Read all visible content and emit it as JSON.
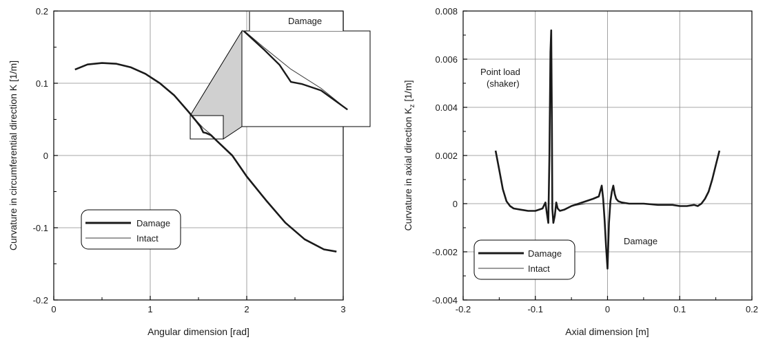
{
  "chart_data": [
    {
      "type": "line",
      "xlabel": "Angular dimension [rad]",
      "ylabel": "Curvature in circumferential direction K [1/m]",
      "xlim": [
        0,
        3
      ],
      "ylim": [
        -0.2,
        0.2
      ],
      "xticks": [
        "0",
        "1",
        "2",
        "3"
      ],
      "yticks": [
        "-0.2",
        "-0.1",
        "0",
        "0.1",
        "0.2"
      ],
      "grid": true,
      "legend_position": "bottom-left",
      "series": [
        {
          "name": "Damage",
          "x": [
            0.22,
            0.35,
            0.5,
            0.65,
            0.8,
            0.95,
            1.1,
            1.25,
            1.4,
            1.48,
            1.52,
            1.55,
            1.58,
            1.63,
            1.7,
            1.85,
            2.0,
            2.2,
            2.4,
            2.6,
            2.8,
            2.93
          ],
          "y": [
            0.119,
            0.126,
            0.128,
            0.127,
            0.122,
            0.113,
            0.1,
            0.083,
            0.06,
            0.047,
            0.04,
            0.032,
            0.031,
            0.028,
            0.019,
            0.0,
            -0.029,
            -0.062,
            -0.093,
            -0.116,
            -0.13,
            -0.133
          ]
        },
        {
          "name": "Intact",
          "x": [
            0.22,
            0.35,
            0.5,
            0.65,
            0.8,
            0.95,
            1.1,
            1.25,
            1.4,
            1.48,
            1.55,
            1.63,
            1.7,
            1.85,
            2.0,
            2.2,
            2.4,
            2.6,
            2.8,
            2.93
          ],
          "y": [
            0.119,
            0.126,
            0.128,
            0.127,
            0.122,
            0.113,
            0.1,
            0.083,
            0.06,
            0.048,
            0.038,
            0.029,
            0.019,
            0.0,
            -0.029,
            -0.062,
            -0.093,
            -0.116,
            -0.13,
            -0.133
          ]
        }
      ],
      "annotations": [
        "Damage"
      ]
    },
    {
      "type": "line",
      "xlabel": "Axial dimension [m]",
      "ylabel": "Curvature in axial direction K",
      "ylabel_sub": "z",
      "ylabel_unit": " [1/m]",
      "xlim": [
        -0.2,
        0.2
      ],
      "ylim": [
        -0.004,
        0.008
      ],
      "xticks": [
        "-0.2",
        "-0.1",
        "0",
        "0.1",
        "0.2"
      ],
      "yticks": [
        "-0.004",
        "-0.002",
        "0",
        "0.002",
        "0.004",
        "0.006",
        "0.008"
      ],
      "grid": true,
      "legend_position": "bottom-left",
      "series": [
        {
          "name": "Damage",
          "x": [
            -0.155,
            -0.15,
            -0.145,
            -0.14,
            -0.135,
            -0.13,
            -0.12,
            -0.11,
            -0.1,
            -0.09,
            -0.086,
            -0.084,
            -0.082,
            -0.0805,
            -0.079,
            -0.078,
            -0.077,
            -0.0765,
            -0.075,
            -0.073,
            -0.071,
            -0.069,
            -0.066,
            -0.06,
            -0.05,
            -0.04,
            -0.03,
            -0.02,
            -0.012,
            -0.008,
            -0.006,
            -0.004,
            -0.002,
            0.0,
            0.002,
            0.004,
            0.006,
            0.008,
            0.01,
            0.012,
            0.015,
            0.02,
            0.03,
            0.05,
            0.07,
            0.09,
            0.1,
            0.11,
            0.12,
            0.125,
            0.13,
            0.135,
            0.14,
            0.145,
            0.15,
            0.155
          ],
          "y": [
            0.0022,
            0.0014,
            0.0006,
            0.0001,
            -0.0001,
            -0.0002,
            -0.00025,
            -0.0003,
            -0.0003,
            -0.0002,
            5e-05,
            -0.0004,
            -0.0008,
            0.002,
            0.0063,
            0.0072,
            0.0034,
            -0.0002,
            -0.0008,
            -0.0005,
            5e-05,
            -0.0002,
            -0.0003,
            -0.00025,
            -0.0001,
            0.0,
            0.0001,
            0.0002,
            0.0003,
            0.00075,
            0.0002,
            -0.0007,
            -0.0018,
            -0.0027,
            -0.0008,
            0.0001,
            0.0005,
            0.00075,
            0.0004,
            0.0002,
            0.0001,
            5e-05,
            0.0,
            0.0,
            -5e-05,
            -5e-05,
            -0.0001,
            -0.0001,
            -5e-05,
            -0.0001,
            0.0,
            0.0002,
            0.0005,
            0.001,
            0.0016,
            0.0022
          ]
        },
        {
          "name": "Intact",
          "x": [
            -0.155,
            -0.15,
            -0.145,
            -0.14,
            -0.135,
            -0.13,
            -0.12,
            -0.11,
            -0.1,
            -0.09,
            -0.086,
            -0.084,
            -0.082,
            -0.0805,
            -0.079,
            -0.078,
            -0.077,
            -0.0765,
            -0.075,
            -0.073,
            -0.071,
            -0.069,
            -0.066,
            -0.06,
            -0.05,
            -0.03,
            -0.01,
            0.01,
            0.03,
            0.05,
            0.07,
            0.09,
            0.1,
            0.11,
            0.12,
            0.125,
            0.13,
            0.135,
            0.14,
            0.145,
            0.15,
            0.155
          ],
          "y": [
            0.0022,
            0.0014,
            0.0006,
            0.0001,
            -0.0001,
            -0.0002,
            -0.00025,
            -0.0003,
            -0.0003,
            -0.0002,
            5e-05,
            -0.0004,
            -0.0008,
            0.002,
            0.0063,
            0.0072,
            0.0034,
            -0.0002,
            -0.0008,
            -0.0005,
            5e-05,
            -0.0002,
            -0.0003,
            -0.00025,
            -0.0001,
            0.0,
            0.0,
            0.0,
            0.0,
            0.0,
            -5e-05,
            -5e-05,
            -0.0001,
            -0.0001,
            -5e-05,
            -0.0001,
            0.0,
            0.0002,
            0.0005,
            0.001,
            0.0016,
            0.0022
          ]
        }
      ],
      "annotations": [
        "Point load",
        "(shaker)",
        "Damage"
      ]
    }
  ],
  "colors": {
    "damage_line": "#1a1a1a",
    "intact_line": "#3a3a3a",
    "inset_fill": "#d0d0d0",
    "grid": "#8a8a8a"
  }
}
